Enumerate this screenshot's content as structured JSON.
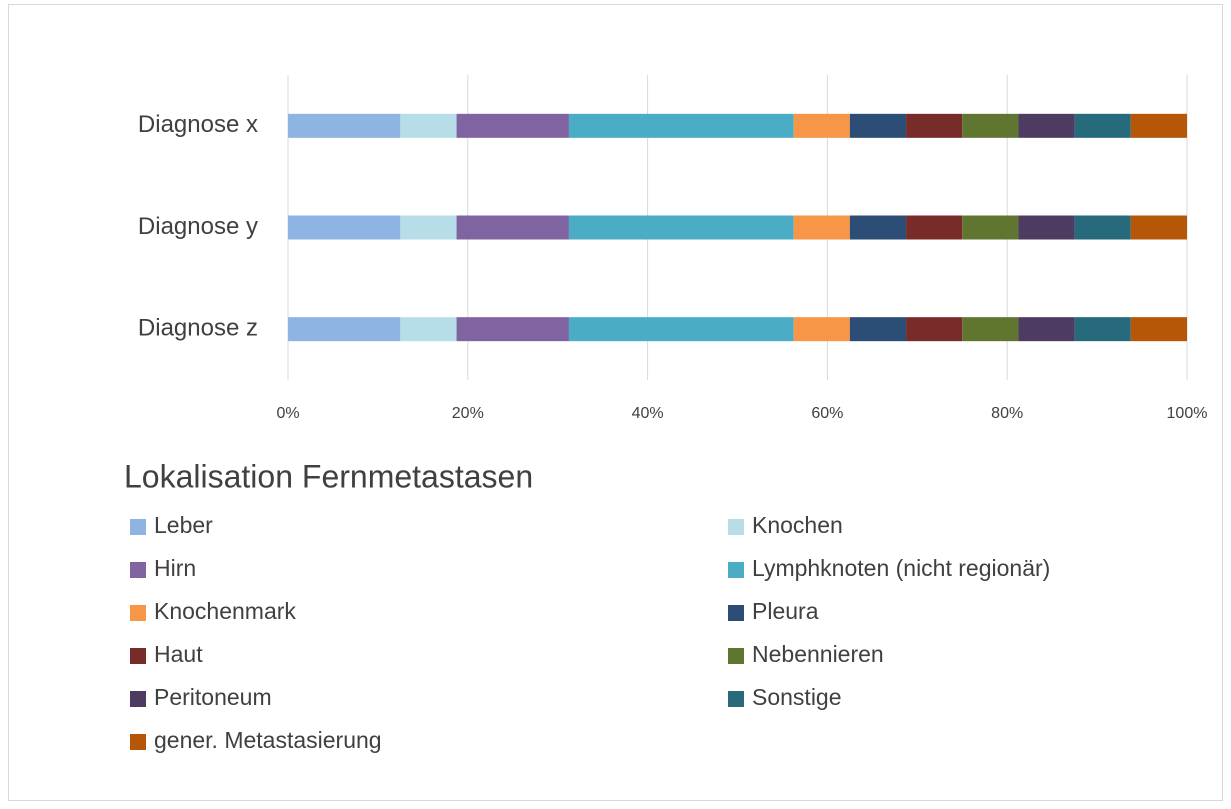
{
  "chart_data": {
    "type": "bar",
    "orientation": "horizontal",
    "stacked": true,
    "title": "Lokalisation Fernmetastasen",
    "categories": [
      "Diagnose x",
      "Diagnose y",
      "Diagnose z"
    ],
    "series": [
      {
        "name": "Leber",
        "color": "#8eb4e3",
        "values": [
          12.5,
          12.5,
          12.5
        ]
      },
      {
        "name": "Knochen",
        "color": "#b7dee8",
        "values": [
          6.25,
          6.25,
          6.25
        ]
      },
      {
        "name": "Hirn",
        "color": "#8064a2",
        "values": [
          12.5,
          12.5,
          12.5
        ]
      },
      {
        "name": "Lymphknoten (nicht regionär)",
        "color": "#4bacc6",
        "values": [
          25,
          25,
          25
        ]
      },
      {
        "name": "Knochenmark",
        "color": "#f79646",
        "values": [
          6.25,
          6.25,
          6.25
        ]
      },
      {
        "name": "Pleura",
        "color": "#2c4d75",
        "values": [
          6.25,
          6.25,
          6.25
        ]
      },
      {
        "name": "Haut",
        "color": "#772c2a",
        "values": [
          6.25,
          6.25,
          6.25
        ]
      },
      {
        "name": "Nebennieren",
        "color": "#5f7530",
        "values": [
          6.25,
          6.25,
          6.25
        ]
      },
      {
        "name": "Peritoneum",
        "color": "#4d3b62",
        "values": [
          6.25,
          6.25,
          6.25
        ]
      },
      {
        "name": "Sonstige",
        "color": "#276a7c",
        "values": [
          6.25,
          6.25,
          6.25
        ]
      },
      {
        "name": "gener. Metastasierung",
        "color": "#b65708",
        "values": [
          6.25,
          6.25,
          6.25
        ]
      }
    ],
    "xlim": [
      0,
      100
    ],
    "xticks": [
      {
        "value": 0,
        "label": "0%"
      },
      {
        "value": 20,
        "label": "20%"
      },
      {
        "value": 40,
        "label": "40%"
      },
      {
        "value": 60,
        "label": "60%"
      },
      {
        "value": 80,
        "label": "80%"
      },
      {
        "value": 100,
        "label": "100%"
      }
    ],
    "grid": true,
    "legend": "bottom"
  }
}
